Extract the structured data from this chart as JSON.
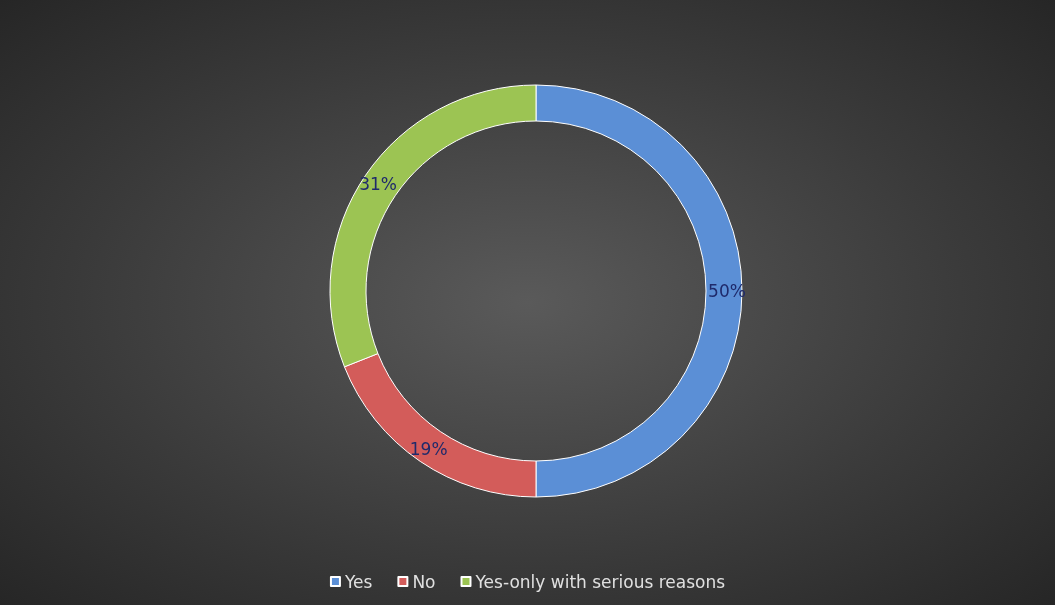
{
  "chart_data": {
    "type": "donut",
    "categories": [
      "Yes",
      "No",
      "Yes-only with serious reasons"
    ],
    "values": [
      50,
      19,
      31
    ],
    "colors": [
      "#5b8fd6",
      "#d35c5a",
      "#9cc453"
    ],
    "value_labels": [
      "50%",
      "19%",
      "31%"
    ],
    "legend": "bottom"
  }
}
